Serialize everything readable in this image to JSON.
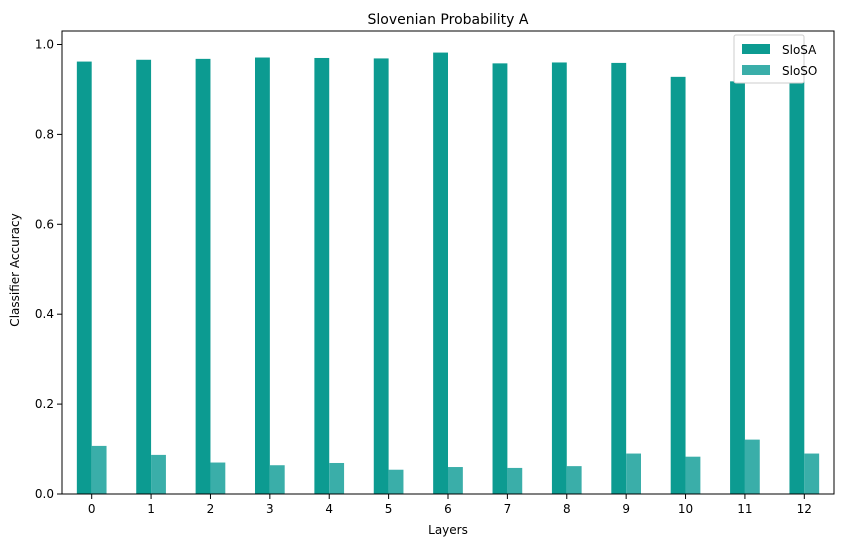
{
  "chart_data": {
    "type": "bar",
    "title": "Slovenian Probability A",
    "xlabel": "Layers",
    "ylabel": "Classifier Accuracy",
    "categories": [
      "0",
      "1",
      "2",
      "3",
      "4",
      "5",
      "6",
      "7",
      "8",
      "9",
      "10",
      "11",
      "12"
    ],
    "series": [
      {
        "name": "SloSA",
        "color": "#0c9b91",
        "values": [
          0.962,
          0.966,
          0.968,
          0.971,
          0.97,
          0.969,
          0.982,
          0.958,
          0.96,
          0.959,
          0.928,
          0.918,
          0.945
        ]
      },
      {
        "name": "SloSO",
        "color": "#3aaea9",
        "values": [
          0.107,
          0.087,
          0.07,
          0.064,
          0.069,
          0.054,
          0.06,
          0.058,
          0.062,
          0.09,
          0.083,
          0.121,
          0.09
        ]
      }
    ],
    "ylim": [
      0,
      1.03
    ],
    "yticks": [
      "0.0",
      "0.2",
      "0.4",
      "0.6",
      "0.8",
      "1.0"
    ],
    "grid": false,
    "legend": "top-right"
  }
}
